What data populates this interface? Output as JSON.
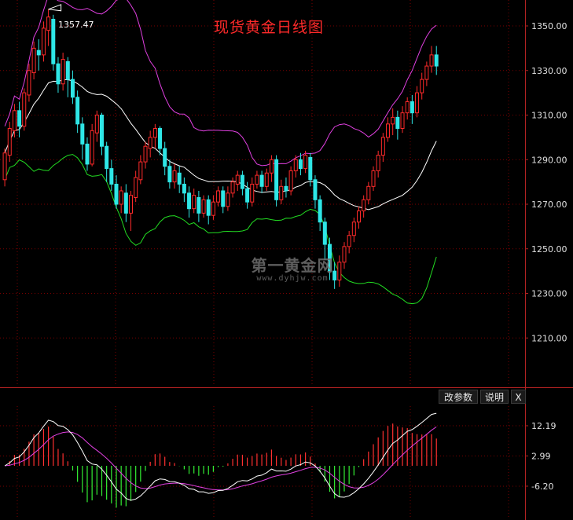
{
  "title": "现货黄金日线图",
  "high_marker": "1357.47",
  "watermark": {
    "main": "第一黄金网",
    "sub": "www.dyhjw.com"
  },
  "indicator_buttons": {
    "params": "改参数",
    "help": "说明",
    "close": "X"
  },
  "colors": {
    "up": "#ff2a2a",
    "down": "#2ee6e6",
    "upper_band": "#e040e0",
    "middle_band": "#ffffff",
    "lower_band": "#22dd22",
    "grid": "#7a0000",
    "axis_text": "#e0e0e0",
    "macd_line": "#ffffff",
    "signal_line": "#e040e0",
    "hist_pos": "#ff3030",
    "hist_neg": "#33ee33"
  },
  "chart_data": [
    {
      "type": "candlestick",
      "title": "现货黄金日线图",
      "ylim": [
        1200,
        1360
      ],
      "yticks": [
        1350.0,
        1330.0,
        1310.0,
        1290.0,
        1270.0,
        1250.0,
        1230.0,
        1210.0
      ],
      "ytick_labels": [
        "1350.00",
        "1330.00",
        "1310.00",
        "1290.00",
        "1270.00",
        "1250.00",
        "1230.00",
        "1210.00"
      ],
      "grid": true,
      "annotation": {
        "text": "1357.47",
        "value": 1357.47
      },
      "candles": [
        [
          1281,
          1293,
          1278,
          1295
        ],
        [
          1292,
          1304,
          1289,
          1307
        ],
        [
          1303,
          1312,
          1300,
          1315
        ],
        [
          1312,
          1305,
          1300,
          1316
        ],
        [
          1305,
          1320,
          1303,
          1322
        ],
        [
          1319,
          1330,
          1316,
          1333
        ],
        [
          1329,
          1340,
          1326,
          1343
        ],
        [
          1339,
          1337,
          1330,
          1344
        ],
        [
          1337,
          1349,
          1334,
          1352
        ],
        [
          1348,
          1354,
          1341,
          1357.47
        ],
        [
          1353,
          1333,
          1330,
          1355
        ],
        [
          1333,
          1324,
          1320,
          1336
        ],
        [
          1324,
          1335,
          1321,
          1338
        ],
        [
          1334,
          1326,
          1318,
          1336
        ],
        [
          1326,
          1318,
          1315,
          1330
        ],
        [
          1318,
          1306,
          1302,
          1321
        ],
        [
          1306,
          1297,
          1290,
          1309
        ],
        [
          1297,
          1288,
          1285,
          1300
        ],
        [
          1288,
          1303,
          1287,
          1306
        ],
        [
          1302,
          1310,
          1298,
          1312
        ],
        [
          1310,
          1296,
          1292,
          1311
        ],
        [
          1296,
          1286,
          1280,
          1298
        ],
        [
          1286,
          1279,
          1276,
          1290
        ],
        [
          1279,
          1270,
          1268,
          1283
        ],
        [
          1270,
          1276,
          1266,
          1278
        ],
        [
          1275,
          1266,
          1262,
          1279
        ],
        [
          1266,
          1274,
          1258,
          1276
        ],
        [
          1273,
          1282,
          1271,
          1285
        ],
        [
          1281,
          1289,
          1279,
          1292
        ],
        [
          1289,
          1296,
          1286,
          1298
        ],
        [
          1295,
          1300,
          1291,
          1303
        ],
        [
          1300,
          1304,
          1295,
          1306
        ],
        [
          1304,
          1295,
          1292,
          1305
        ],
        [
          1295,
          1287,
          1283,
          1298
        ],
        [
          1287,
          1280,
          1277,
          1290
        ],
        [
          1280,
          1285,
          1277,
          1288
        ],
        [
          1284,
          1279,
          1275,
          1287
        ],
        [
          1279,
          1275,
          1271,
          1282
        ],
        [
          1275,
          1268,
          1264,
          1278
        ],
        [
          1268,
          1274,
          1266,
          1277
        ],
        [
          1273,
          1266,
          1262,
          1276
        ],
        [
          1266,
          1272,
          1264,
          1274
        ],
        [
          1272,
          1265,
          1261,
          1274
        ],
        [
          1265,
          1271,
          1263,
          1274
        ],
        [
          1271,
          1276,
          1269,
          1278
        ],
        [
          1276,
          1269,
          1266,
          1278
        ],
        [
          1269,
          1275,
          1267,
          1278
        ],
        [
          1275,
          1280,
          1273,
          1282
        ],
        [
          1279,
          1283,
          1276,
          1285
        ],
        [
          1283,
          1277,
          1274,
          1285
        ],
        [
          1277,
          1271,
          1268,
          1280
        ],
        [
          1271,
          1279,
          1269,
          1282
        ],
        [
          1279,
          1283,
          1277,
          1285
        ],
        [
          1283,
          1278,
          1275,
          1285
        ],
        [
          1278,
          1284,
          1276,
          1286
        ],
        [
          1284,
          1290,
          1280,
          1292
        ],
        [
          1290,
          1272,
          1269,
          1292
        ],
        [
          1272,
          1278,
          1270,
          1281
        ],
        [
          1278,
          1276,
          1273,
          1282
        ],
        [
          1276,
          1285,
          1274,
          1287
        ],
        [
          1285,
          1290,
          1282,
          1292
        ],
        [
          1290,
          1286,
          1283,
          1293
        ],
        [
          1286,
          1292,
          1284,
          1294
        ],
        [
          1291,
          1281,
          1278,
          1293
        ],
        [
          1281,
          1272,
          1268,
          1283
        ],
        [
          1272,
          1262,
          1258,
          1274
        ],
        [
          1262,
          1252,
          1245,
          1264
        ],
        [
          1252,
          1240,
          1236,
          1255
        ],
        [
          1240,
          1236,
          1232,
          1244
        ],
        [
          1236,
          1244,
          1233,
          1247
        ],
        [
          1244,
          1251,
          1241,
          1253
        ],
        [
          1251,
          1256,
          1248,
          1258
        ],
        [
          1256,
          1262,
          1253,
          1264
        ],
        [
          1262,
          1267,
          1259,
          1269
        ],
        [
          1267,
          1272,
          1264,
          1274
        ],
        [
          1272,
          1278,
          1270,
          1280
        ],
        [
          1278,
          1285,
          1276,
          1287
        ],
        [
          1285,
          1292,
          1282,
          1294
        ],
        [
          1292,
          1300,
          1289,
          1302
        ],
        [
          1300,
          1306,
          1298,
          1309
        ],
        [
          1306,
          1309,
          1301,
          1313
        ],
        [
          1309,
          1304,
          1299,
          1312
        ],
        [
          1304,
          1311,
          1302,
          1314
        ],
        [
          1311,
          1316,
          1308,
          1318
        ],
        [
          1316,
          1311,
          1306,
          1319
        ],
        [
          1311,
          1320,
          1309,
          1323
        ],
        [
          1320,
          1326,
          1317,
          1329
        ],
        [
          1326,
          1332,
          1323,
          1334
        ],
        [
          1332,
          1337,
          1329,
          1341
        ],
        [
          1337,
          1332,
          1328,
          1341
        ]
      ]
    },
    {
      "type": "line",
      "title": "",
      "ylim": [
        -14,
        19
      ],
      "yticks": [
        12.19,
        2.99,
        -6.2
      ],
      "ytick_labels": [
        "12.19",
        "2.99",
        "-6.20"
      ],
      "grid": true
    }
  ]
}
